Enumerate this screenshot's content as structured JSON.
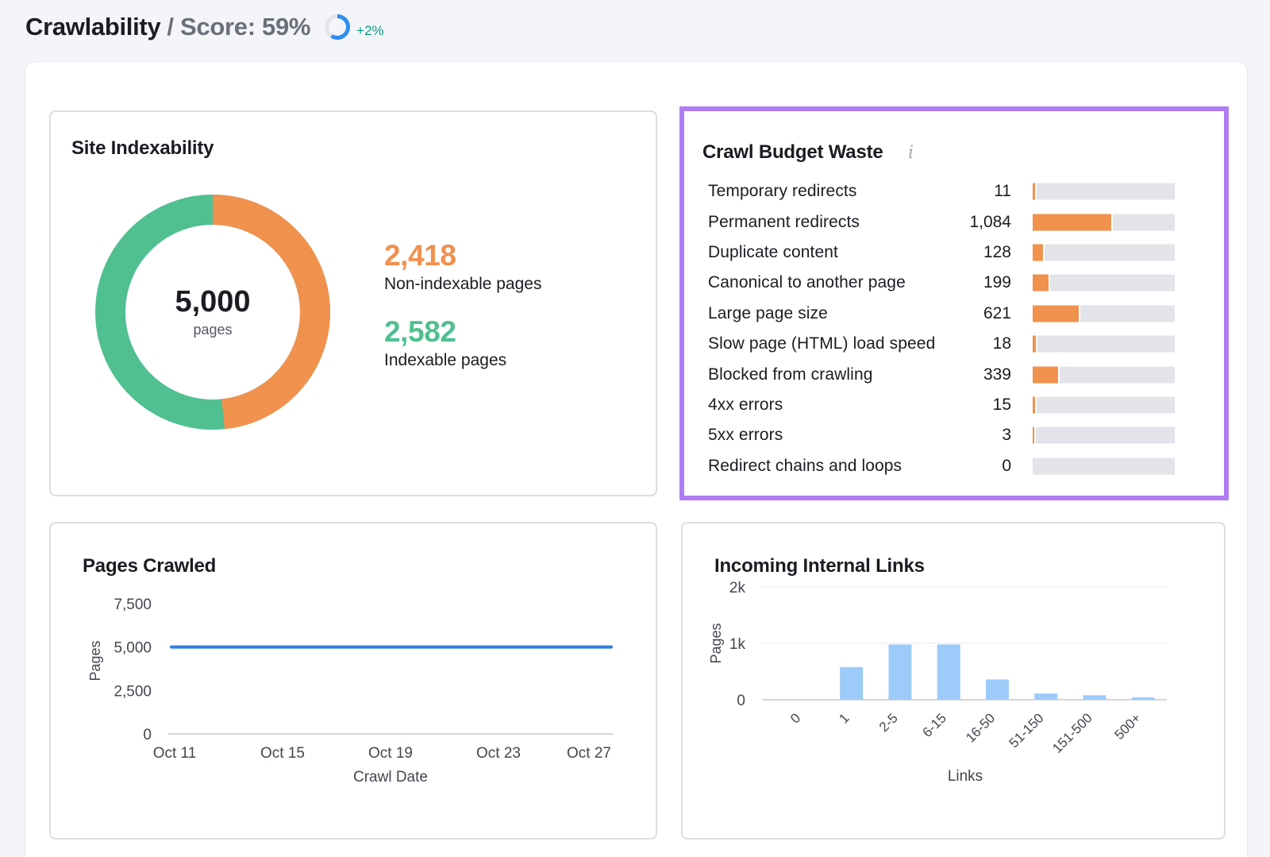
{
  "header": {
    "title": "Crawlability",
    "separator": "/",
    "score_label": "Score: 59%",
    "score_value": 59,
    "delta": "+2%",
    "ring_color": "#2f8df2",
    "delta_color": "#009f81"
  },
  "site_indexability": {
    "title": "Site Indexability",
    "total": "5,000",
    "total_label": "pages",
    "non_indexable": {
      "value": "2,418",
      "label": "Non-indexable pages",
      "count": 2418,
      "color": "#f0914e"
    },
    "indexable": {
      "value": "2,582",
      "label": "Indexable pages",
      "count": 2582,
      "color": "#50c091"
    }
  },
  "crawl_budget_waste": {
    "title": "Crawl Budget Waste",
    "info_icon": "i",
    "max_count": 2000,
    "rows": [
      {
        "label": "Temporary redirects",
        "count": "11",
        "value": 11
      },
      {
        "label": "Permanent redirects",
        "count": "1,084",
        "value": 1084
      },
      {
        "label": "Duplicate content",
        "count": "128",
        "value": 128
      },
      {
        "label": "Canonical to another page",
        "count": "199",
        "value": 199
      },
      {
        "label": "Large page size",
        "count": "621",
        "value": 621
      },
      {
        "label": "Slow page (HTML) load speed",
        "count": "18",
        "value": 18
      },
      {
        "label": "Blocked from crawling",
        "count": "339",
        "value": 339
      },
      {
        "label": "4xx errors",
        "count": "15",
        "value": 15
      },
      {
        "label": "5xx errors",
        "count": "3",
        "value": 3
      },
      {
        "label": "Redirect chains and loops",
        "count": "0",
        "value": 0
      }
    ]
  },
  "chart_data": [
    {
      "type": "line",
      "title": "Pages Crawled",
      "xlabel": "Crawl Date",
      "ylabel": "Pages",
      "x_ticks": [
        "Oct 11",
        "Oct 15",
        "Oct 19",
        "Oct 23",
        "Oct 27"
      ],
      "x_range": [
        0,
        16
      ],
      "y_ticks": [
        "0",
        "2,500",
        "5,000",
        "7,500"
      ],
      "y_tick_values": [
        0,
        2500,
        5000,
        7500
      ],
      "ylim": [
        0,
        7500
      ],
      "series": [
        {
          "name": "Pages",
          "x": [
            0,
            16
          ],
          "values": [
            5000,
            5000
          ],
          "color": "#2f7fdf"
        }
      ]
    },
    {
      "type": "bar",
      "title": "Incoming Internal Links",
      "xlabel": "Links",
      "ylabel": "Pages",
      "categories": [
        "0",
        "1",
        "2-5",
        "6-15",
        "16-50",
        "51-150",
        "151-500",
        "500+"
      ],
      "values": [
        0,
        580,
        980,
        980,
        360,
        110,
        80,
        40
      ],
      "y_ticks": [
        "0",
        "1k",
        "2k"
      ],
      "y_tick_values": [
        0,
        1000,
        2000
      ],
      "ylim": [
        0,
        2000
      ],
      "color": "#9ccbfa"
    }
  ]
}
